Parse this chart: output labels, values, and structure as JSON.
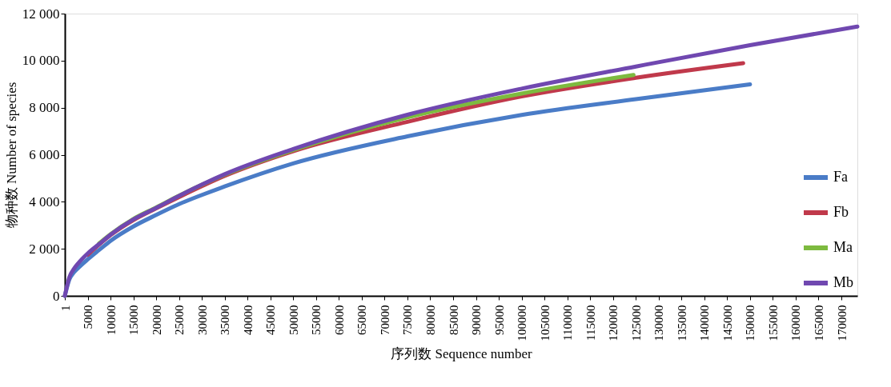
{
  "chart_data": {
    "type": "line",
    "xlabel": "序列数 Sequence number",
    "ylabel": "物种数 Number of species",
    "xlim": [
      1,
      173500
    ],
    "ylim": [
      0,
      12000
    ],
    "xticks": [
      1,
      5000,
      10000,
      15000,
      20000,
      25000,
      30000,
      35000,
      40000,
      45000,
      50000,
      55000,
      60000,
      65000,
      70000,
      75000,
      80000,
      85000,
      90000,
      95000,
      100000,
      105000,
      110000,
      115000,
      120000,
      125000,
      130000,
      135000,
      140000,
      145000,
      150000,
      155000,
      160000,
      165000,
      170000
    ],
    "yticks": [
      {
        "value": 0,
        "label": "0"
      },
      {
        "value": 2000,
        "label": "2 000"
      },
      {
        "value": 4000,
        "label": "4 000"
      },
      {
        "value": 6000,
        "label": "6 000"
      },
      {
        "value": 8000,
        "label": "8 000"
      },
      {
        "value": 10000,
        "label": "10 000"
      },
      {
        "value": 12000,
        "label": "12 000"
      }
    ],
    "grid": false,
    "legend": "bottom right",
    "marker": "none",
    "line_style": "solid",
    "series": [
      {
        "name": "Fa",
        "color": "#4a7cc7",
        "x": [
          1,
          1000,
          2000,
          3000,
          5000,
          7500,
          10000,
          15000,
          20000,
          25000,
          35000,
          50000,
          75000,
          100000,
          125000,
          150000
        ],
        "values": [
          0,
          700,
          1000,
          1200,
          1550,
          1950,
          2340,
          2950,
          3440,
          3900,
          4650,
          5630,
          6780,
          7690,
          8360,
          8990
        ]
      },
      {
        "name": "Fb",
        "color": "#c0394b",
        "x": [
          5000,
          7500,
          10000,
          15000,
          20000,
          25000,
          35000,
          50000,
          75000,
          100000,
          125000,
          148500
        ],
        "values": [
          1750,
          2180,
          2580,
          3220,
          3720,
          4200,
          5100,
          6150,
          7400,
          8480,
          9270,
          9890
        ]
      },
      {
        "name": "Ma",
        "color": "#7dba3f",
        "x": [
          7500,
          10000,
          15000,
          20000,
          25000,
          35000,
          50000,
          75000,
          100000,
          124500
        ],
        "values": [
          2230,
          2620,
          3270,
          3760,
          4260,
          5150,
          6200,
          7590,
          8600,
          9390
        ]
      },
      {
        "name": "Mb",
        "color": "#7048b0",
        "x": [
          1,
          1000,
          2000,
          3000,
          5000,
          7500,
          10000,
          15000,
          20000,
          25000,
          35000,
          50000,
          75000,
          100000,
          125000,
          150000,
          173500
        ],
        "values": [
          0,
          800,
          1150,
          1400,
          1800,
          2200,
          2600,
          3250,
          3740,
          4250,
          5170,
          6240,
          7700,
          8810,
          9750,
          10660,
          11450
        ]
      }
    ]
  }
}
